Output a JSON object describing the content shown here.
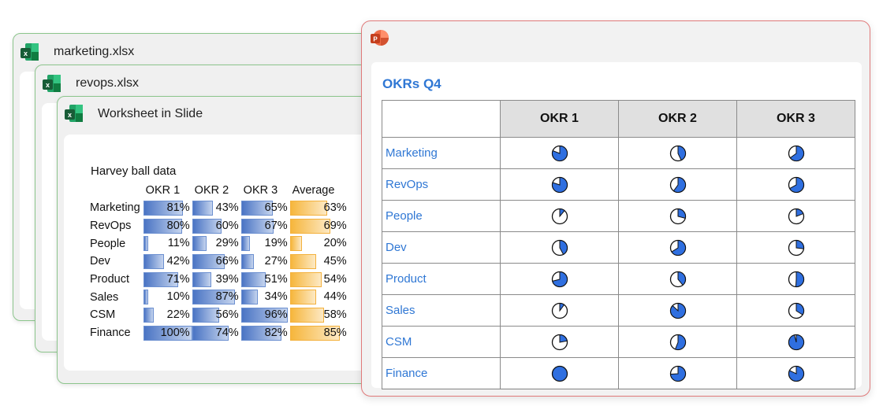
{
  "windows": [
    {
      "title": "marketing.xlsx"
    },
    {
      "title": "revops.xlsx"
    },
    {
      "title": "Worksheet in Slide"
    }
  ],
  "sheet": {
    "title": "Harvey ball data",
    "headers": [
      "OKR 1",
      "OKR 2",
      "OKR 3",
      "Average"
    ],
    "rows": [
      {
        "label": "Marketing",
        "okr1": 81,
        "okr2": 43,
        "okr3": 65,
        "avg": 63
      },
      {
        "label": "RevOps",
        "okr1": 80,
        "okr2": 60,
        "okr3": 67,
        "avg": 69
      },
      {
        "label": "People",
        "okr1": 11,
        "okr2": 29,
        "okr3": 19,
        "avg": 20
      },
      {
        "label": "Dev",
        "okr1": 42,
        "okr2": 66,
        "okr3": 27,
        "avg": 45
      },
      {
        "label": "Product",
        "okr1": 71,
        "okr2": 39,
        "okr3": 51,
        "avg": 54
      },
      {
        "label": "Sales",
        "okr1": 10,
        "okr2": 87,
        "okr3": 34,
        "avg": 44
      },
      {
        "label": "CSM",
        "okr1": 22,
        "okr2": 56,
        "okr3": 96,
        "avg": 58
      },
      {
        "label": "Finance",
        "okr1": 100,
        "okr2": 74,
        "okr3": 82,
        "avg": 85
      }
    ]
  },
  "slide": {
    "title": "OKRs Q4",
    "headers": [
      "OKR 1",
      "OKR 2",
      "OKR 3"
    ]
  },
  "icons": {
    "excel": "excel-icon",
    "powerpoint": "powerpoint-icon"
  },
  "colors": {
    "accent_blue": "#2f77d4",
    "ball_blue": "#2f6fe0",
    "excel_green": "#1e7145",
    "ppt_red": "#d24726"
  }
}
